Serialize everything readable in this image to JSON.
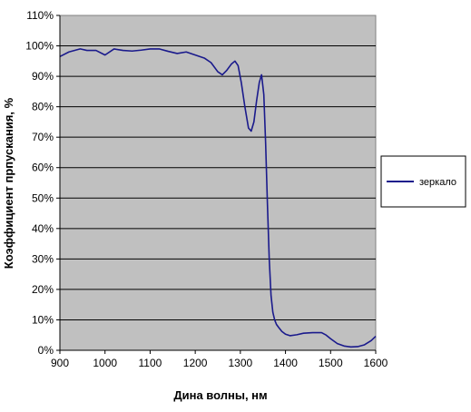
{
  "chart_data": {
    "type": "line",
    "title": "",
    "xlabel": "Дина волны, нм",
    "ylabel": "Коэффициент прпускания, %",
    "xlim": [
      900,
      1600
    ],
    "ylim": [
      0,
      110
    ],
    "x_ticks": [
      900,
      1000,
      1100,
      1200,
      1300,
      1400,
      1500,
      1600
    ],
    "x_tick_labels": [
      "900",
      "1000",
      "1100",
      "1200",
      "1300",
      "1400",
      "1500",
      "1600"
    ],
    "y_ticks": [
      0,
      10,
      20,
      30,
      40,
      50,
      60,
      70,
      80,
      90,
      100,
      110
    ],
    "y_tick_labels": [
      "0%",
      "10%",
      "20%",
      "30%",
      "40%",
      "50%",
      "60%",
      "70%",
      "80%",
      "90%",
      "100%",
      "110%"
    ],
    "grid": true,
    "legend_position": "right",
    "plot_background": "#c0c0c0",
    "series": [
      {
        "name": "зеркало",
        "color": "#1a1a8c",
        "x": [
          900,
          920,
          945,
          960,
          980,
          1000,
          1020,
          1040,
          1060,
          1080,
          1100,
          1120,
          1140,
          1160,
          1180,
          1200,
          1220,
          1235,
          1250,
          1260,
          1270,
          1280,
          1288,
          1295,
          1302,
          1310,
          1318,
          1324,
          1330,
          1336,
          1342,
          1347,
          1352,
          1356,
          1360,
          1364,
          1368,
          1372,
          1376,
          1380,
          1385,
          1392,
          1400,
          1410,
          1425,
          1440,
          1460,
          1480,
          1490,
          1500,
          1515,
          1530,
          1545,
          1560,
          1575,
          1590,
          1600
        ],
        "y": [
          96.5,
          98,
          99,
          98.5,
          98.5,
          97,
          99,
          98.5,
          98.3,
          98.6,
          99,
          99,
          98.2,
          97.5,
          98,
          97,
          96,
          94.5,
          91.5,
          90.5,
          92,
          94,
          95,
          93.5,
          88,
          80,
          73,
          72,
          75,
          82,
          88,
          90.5,
          84,
          68,
          48,
          30,
          18,
          12.5,
          10,
          8.5,
          7.5,
          6.2,
          5.3,
          4.8,
          5.1,
          5.6,
          5.8,
          5.8,
          5.0,
          3.8,
          2.2,
          1.4,
          1.1,
          1.2,
          1.8,
          3.2,
          4.6
        ]
      }
    ]
  },
  "legend": {
    "label": "зеркало"
  }
}
